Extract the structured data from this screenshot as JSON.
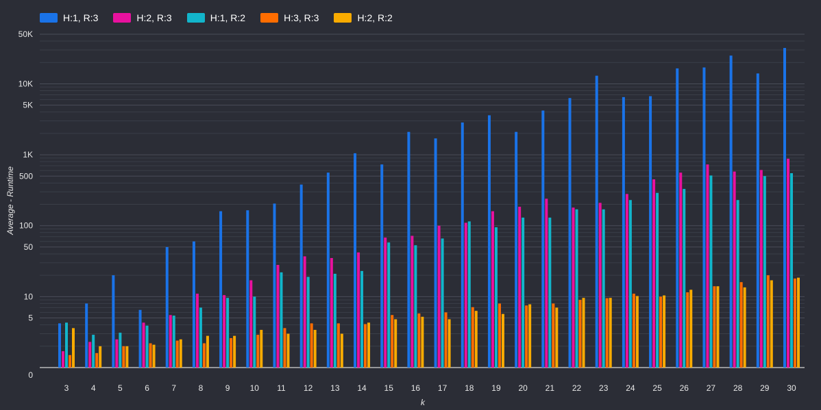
{
  "chart_data": {
    "type": "bar",
    "xlabel": "k",
    "ylabel": "Average - Runtime",
    "yscale": "log",
    "ylim": [
      1,
      50000
    ],
    "grid": true,
    "legend_position": "top-left",
    "y_ticks": [
      {
        "value": 50000,
        "label": "50K"
      },
      {
        "value": 10000,
        "label": "10K"
      },
      {
        "value": 5000,
        "label": "5K"
      },
      {
        "value": 1000,
        "label": "1K"
      },
      {
        "value": 500,
        "label": "500"
      },
      {
        "value": 100,
        "label": "100"
      },
      {
        "value": 50,
        "label": "50"
      },
      {
        "value": 10,
        "label": "10"
      },
      {
        "value": 5,
        "label": "5"
      },
      {
        "value": 1,
        "label": "0"
      }
    ],
    "categories": [
      "3",
      "4",
      "5",
      "6",
      "7",
      "8",
      "9",
      "10",
      "11",
      "12",
      "13",
      "14",
      "15",
      "16",
      "17",
      "18",
      "19",
      "20",
      "21",
      "22",
      "23",
      "24",
      "25",
      "26",
      "27",
      "28",
      "29",
      "30"
    ],
    "series": [
      {
        "name": "H:1, R:3",
        "color": "#1a73e8",
        "values": [
          4.2,
          8,
          20,
          6.5,
          50,
          60,
          160,
          165,
          205,
          380,
          560,
          1050,
          730,
          2100,
          1700,
          2850,
          3600,
          2100,
          4200,
          6300,
          13000,
          6500,
          6700,
          16500,
          17000,
          25000,
          14000,
          32000
        ]
      },
      {
        "name": "H:2, R:3",
        "color": "#e8119e",
        "values": [
          1.7,
          2.3,
          2.5,
          4.3,
          5.5,
          11,
          10.5,
          17,
          28,
          37,
          35,
          42,
          68,
          72,
          100,
          110,
          160,
          185,
          240,
          180,
          210,
          280,
          450,
          560,
          730,
          580,
          610,
          880
        ]
      },
      {
        "name": "H:1, R:2",
        "color": "#12b5cb",
        "values": [
          4.3,
          2.9,
          3.1,
          3.9,
          5.4,
          7,
          9.6,
          10,
          22,
          19,
          21,
          23,
          58,
          53,
          66,
          115,
          95,
          130,
          130,
          170,
          170,
          230,
          290,
          330,
          510,
          230,
          500,
          550
        ]
      },
      {
        "name": "H:3, R:3",
        "color": "#ff6d00",
        "values": [
          1.5,
          1.6,
          2.0,
          2.2,
          2.4,
          2.2,
          2.6,
          2.9,
          3.6,
          4.2,
          4.2,
          4.1,
          5.5,
          5.8,
          6.0,
          7.1,
          8.0,
          7.5,
          8.0,
          9.0,
          9.5,
          11,
          10,
          11.5,
          14,
          16,
          20,
          18
        ]
      },
      {
        "name": "H:2, R:2",
        "color": "#f9ab00",
        "values": [
          3.6,
          2.0,
          2.0,
          2.1,
          2.5,
          2.8,
          2.8,
          3.4,
          3.0,
          3.4,
          3.0,
          4.3,
          4.8,
          5.2,
          4.8,
          6.3,
          5.7,
          7.8,
          7.0,
          9.6,
          9.6,
          10.2,
          10.4,
          12.5,
          14,
          13.5,
          17,
          18.5
        ]
      }
    ]
  }
}
